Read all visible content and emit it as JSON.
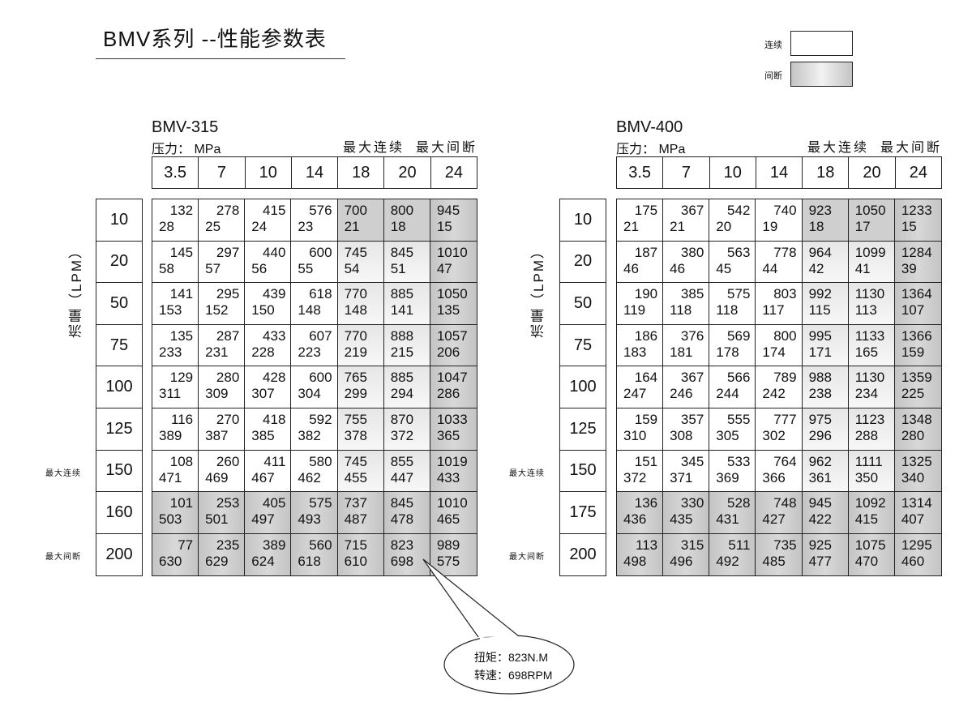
{
  "title": "BMV系列 --性能参数表",
  "legend": {
    "continuous": "连续",
    "intermittent": "间断"
  },
  "flow_label": "流量（LPM）",
  "max_continuous": "最大连续",
  "max_intermittent": "最大间断",
  "pressure_label": "压力： MPa",
  "callout": {
    "torque": "扭矩：823N.M",
    "speed": "转速：698RPM"
  },
  "colors": {
    "intermittent_shade": "#c4c4c4",
    "continuous": "#ffffff"
  },
  "tables": [
    {
      "model": "BMV-315",
      "pressures": [
        "3.5",
        "7",
        "10",
        "14",
        "18",
        "20",
        "24"
      ],
      "flows": [
        "10",
        "20",
        "50",
        "75",
        "100",
        "125",
        "150",
        "160",
        "200"
      ],
      "side_labels": {
        "6": "最大连续",
        "8": "最大间断"
      },
      "cells": [
        [
          [
            "132",
            "28"
          ],
          [
            "278",
            "25"
          ],
          [
            "415",
            "24"
          ],
          [
            "576",
            "23"
          ],
          [
            "700",
            "21"
          ],
          [
            "800",
            "18"
          ],
          [
            "945",
            "15"
          ]
        ],
        [
          [
            "145",
            "58"
          ],
          [
            "297",
            "57"
          ],
          [
            "440",
            "56"
          ],
          [
            "600",
            "55"
          ],
          [
            "745",
            "54"
          ],
          [
            "845",
            "51"
          ],
          [
            "1010",
            "47"
          ]
        ],
        [
          [
            "141",
            "153"
          ],
          [
            "295",
            "152"
          ],
          [
            "439",
            "150"
          ],
          [
            "618",
            "148"
          ],
          [
            "770",
            "148"
          ],
          [
            "885",
            "141"
          ],
          [
            "1050",
            "135"
          ]
        ],
        [
          [
            "135",
            "233"
          ],
          [
            "287",
            "231"
          ],
          [
            "433",
            "228"
          ],
          [
            "607",
            "223"
          ],
          [
            "770",
            "219"
          ],
          [
            "888",
            "215"
          ],
          [
            "1057",
            "206"
          ]
        ],
        [
          [
            "129",
            "311"
          ],
          [
            "280",
            "309"
          ],
          [
            "428",
            "307"
          ],
          [
            "600",
            "304"
          ],
          [
            "765",
            "299"
          ],
          [
            "885",
            "294"
          ],
          [
            "1047",
            "286"
          ]
        ],
        [
          [
            "116",
            "389"
          ],
          [
            "270",
            "387"
          ],
          [
            "418",
            "385"
          ],
          [
            "592",
            "382"
          ],
          [
            "755",
            "378"
          ],
          [
            "870",
            "372"
          ],
          [
            "1033",
            "365"
          ]
        ],
        [
          [
            "108",
            "471"
          ],
          [
            "260",
            "469"
          ],
          [
            "411",
            "467"
          ],
          [
            "580",
            "462"
          ],
          [
            "745",
            "455"
          ],
          [
            "855",
            "447"
          ],
          [
            "1019",
            "433"
          ]
        ],
        [
          [
            "101",
            "503"
          ],
          [
            "253",
            "501"
          ],
          [
            "405",
            "497"
          ],
          [
            "575",
            "493"
          ],
          [
            "737",
            "487"
          ],
          [
            "845",
            "478"
          ],
          [
            "1010",
            "465"
          ]
        ],
        [
          [
            "77",
            "630"
          ],
          [
            "235",
            "629"
          ],
          [
            "389",
            "624"
          ],
          [
            "560",
            "618"
          ],
          [
            "715",
            "610"
          ],
          [
            "823",
            "698"
          ],
          [
            "989",
            "575"
          ]
        ]
      ]
    },
    {
      "model": "BMV-400",
      "pressures": [
        "3.5",
        "7",
        "10",
        "14",
        "18",
        "20",
        "24"
      ],
      "flows": [
        "10",
        "20",
        "50",
        "75",
        "100",
        "125",
        "150",
        "175",
        "200"
      ],
      "side_labels": {
        "6": "最大连续",
        "8": "最大间断"
      },
      "cells": [
        [
          [
            "175",
            "21"
          ],
          [
            "367",
            "21"
          ],
          [
            "542",
            "20"
          ],
          [
            "740",
            "19"
          ],
          [
            "923",
            "18"
          ],
          [
            "1050",
            "17"
          ],
          [
            "1233",
            "15"
          ]
        ],
        [
          [
            "187",
            "46"
          ],
          [
            "380",
            "46"
          ],
          [
            "563",
            "45"
          ],
          [
            "778",
            "44"
          ],
          [
            "964",
            "42"
          ],
          [
            "1099",
            "41"
          ],
          [
            "1284",
            "39"
          ]
        ],
        [
          [
            "190",
            "119"
          ],
          [
            "385",
            "118"
          ],
          [
            "575",
            "118"
          ],
          [
            "803",
            "117"
          ],
          [
            "992",
            "115"
          ],
          [
            "1130",
            "113"
          ],
          [
            "1364",
            "107"
          ]
        ],
        [
          [
            "186",
            "183"
          ],
          [
            "376",
            "181"
          ],
          [
            "569",
            "178"
          ],
          [
            "800",
            "174"
          ],
          [
            "995",
            "171"
          ],
          [
            "1133",
            "165"
          ],
          [
            "1366",
            "159"
          ]
        ],
        [
          [
            "164",
            "247"
          ],
          [
            "367",
            "246"
          ],
          [
            "566",
            "244"
          ],
          [
            "789",
            "242"
          ],
          [
            "988",
            "238"
          ],
          [
            "1130",
            "234"
          ],
          [
            "1359",
            "225"
          ]
        ],
        [
          [
            "159",
            "310"
          ],
          [
            "357",
            "308"
          ],
          [
            "555",
            "305"
          ],
          [
            "777",
            "302"
          ],
          [
            "975",
            "296"
          ],
          [
            "1123",
            "288"
          ],
          [
            "1348",
            "280"
          ]
        ],
        [
          [
            "151",
            "372"
          ],
          [
            "345",
            "371"
          ],
          [
            "533",
            "369"
          ],
          [
            "764",
            "366"
          ],
          [
            "962",
            "361"
          ],
          [
            "1111",
            "350"
          ],
          [
            "1325",
            "340"
          ]
        ],
        [
          [
            "136",
            "436"
          ],
          [
            "330",
            "435"
          ],
          [
            "528",
            "431"
          ],
          [
            "748",
            "427"
          ],
          [
            "945",
            "422"
          ],
          [
            "1092",
            "415"
          ],
          [
            "1314",
            "407"
          ]
        ],
        [
          [
            "113",
            "498"
          ],
          [
            "315",
            "496"
          ],
          [
            "511",
            "492"
          ],
          [
            "735",
            "485"
          ],
          [
            "925",
            "477"
          ],
          [
            "1075",
            "470"
          ],
          [
            "1295",
            "460"
          ]
        ]
      ]
    }
  ]
}
